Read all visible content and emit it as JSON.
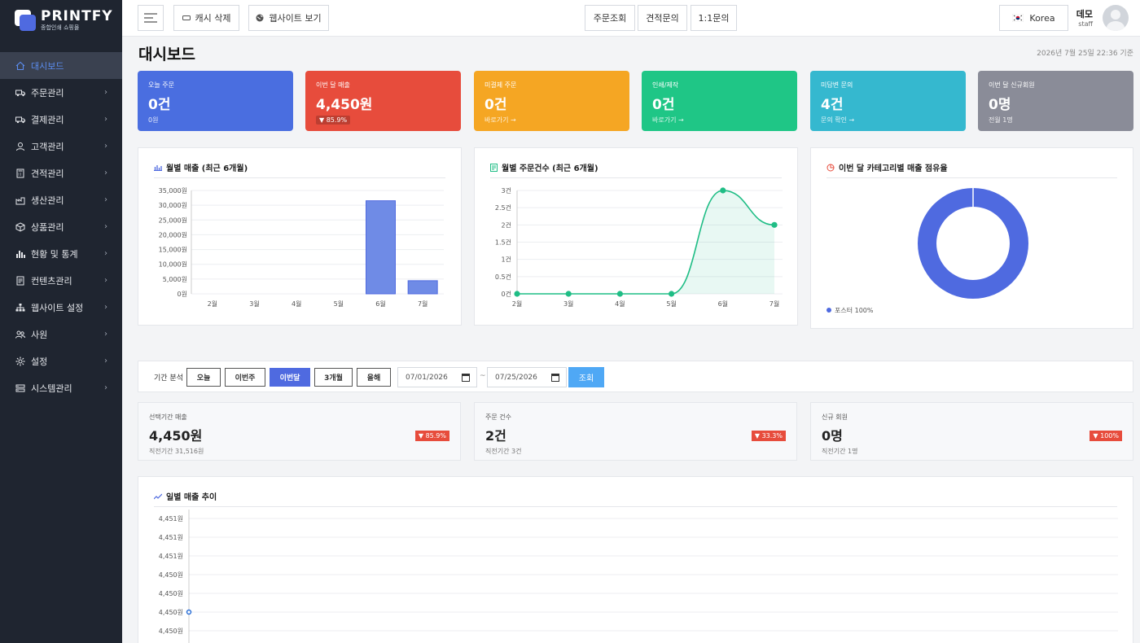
{
  "brand": {
    "title": "PRINTFY",
    "subtitle": "종합인쇄 쇼핑몰"
  },
  "sidebar": {
    "items": [
      {
        "label": "대시보드",
        "icon": "home-icon",
        "active": true
      },
      {
        "label": "주문관리",
        "icon": "truck-icon"
      },
      {
        "label": "결제관리",
        "icon": "truck-icon"
      },
      {
        "label": "고객관리",
        "icon": "user-icon"
      },
      {
        "label": "견적관리",
        "icon": "calculator-icon"
      },
      {
        "label": "생산관리",
        "icon": "factory-icon"
      },
      {
        "label": "상품관리",
        "icon": "box-icon"
      },
      {
        "label": "현황 및 통계",
        "icon": "bar-chart-icon"
      },
      {
        "label": "컨텐츠관리",
        "icon": "document-icon"
      },
      {
        "label": "웹사이트 설정",
        "icon": "sitemap-icon"
      },
      {
        "label": "사원",
        "icon": "users-icon"
      },
      {
        "label": "설정",
        "icon": "gear-icon"
      },
      {
        "label": "시스템관리",
        "icon": "server-icon"
      }
    ]
  },
  "topbar": {
    "cache_label": "캐시 삭제",
    "website_label": "웹사이트 보기",
    "nav": [
      "주문조회",
      "견적문의",
      "1:1문의"
    ],
    "language": "Korea",
    "user_name": "데모",
    "user_role": "staff"
  },
  "page": {
    "title": "대시보드",
    "date": "2026년 7월 25일 22:36 기준"
  },
  "cards": [
    {
      "title": "오늘 주문",
      "value": "0건",
      "sub": "0원",
      "color": "#4a6ee0"
    },
    {
      "title": "이번 달 매출",
      "value": "4,450원",
      "badge": "▼ 85.9%",
      "color": "#e74c3c"
    },
    {
      "title": "미결제 주문",
      "value": "0건",
      "sub": "바로가기 →",
      "color": "#f5a623"
    },
    {
      "title": "인쇄/제작",
      "value": "0건",
      "sub": "바로가기 →",
      "color": "#1fc686"
    },
    {
      "title": "미답변 문의",
      "value": "4건",
      "sub": "문의 확인 →",
      "color": "#35b8cf"
    },
    {
      "title": "이번 달 신규회원",
      "value": "0명",
      "sub": "전월 1명",
      "color": "#8a8c98"
    }
  ],
  "panels": {
    "monthly_sales": "월별 매출 (최근 6개월)",
    "monthly_orders": "월별 주문건수 (최근 6개월)",
    "category_share": "이번 달 카테고리별 매출 점유율",
    "daily_trend": "일별 매출 추이"
  },
  "filter": {
    "label": "기간 분석",
    "buttons": [
      "오늘",
      "이번주",
      "이번달",
      "3개월",
      "올해"
    ],
    "active": "이번달",
    "date_from": "07/01/2026",
    "tilde": "~",
    "date_to": "07/25/2026",
    "search_label": "조회"
  },
  "stats": [
    {
      "title": "선택기간 매출",
      "value": "4,450원",
      "sub": "직전기간 31,516원",
      "change": "▼ 85.9%"
    },
    {
      "title": "주문 건수",
      "value": "2건",
      "sub": "직전기간 3건",
      "change": "▼ 33.3%"
    },
    {
      "title": "신규 회원",
      "value": "0명",
      "sub": "직전기간 1명",
      "change": "▼ 100%"
    }
  ],
  "chart_data": [
    {
      "type": "bar",
      "title": "월별 매출 (최근 6개월)",
      "categories": [
        "2월",
        "3월",
        "4월",
        "5월",
        "6월",
        "7월"
      ],
      "values": [
        0,
        0,
        0,
        0,
        31516,
        4450
      ],
      "ylim": [
        0,
        35000
      ],
      "yticks": [
        "0원",
        "5,000원",
        "10,000원",
        "15,000원",
        "20,000원",
        "25,000원",
        "30,000원",
        "35,000원"
      ],
      "color": "#6f8be6",
      "grid": true
    },
    {
      "type": "area",
      "title": "월별 주문건수 (최근 6개월)",
      "categories": [
        "2월",
        "3월",
        "4월",
        "5월",
        "6월",
        "7월"
      ],
      "values": [
        0,
        0,
        0,
        0,
        3,
        2
      ],
      "ylim": [
        0,
        3
      ],
      "yticks": [
        "0건",
        "0.5건",
        "1건",
        "1.5건",
        "2건",
        "2.5건",
        "3건"
      ],
      "color": "#1fbd85",
      "grid": true
    },
    {
      "type": "pie",
      "title": "이번 달 카테고리별 매출 점유율",
      "series": [
        {
          "name": "포스터 100%",
          "value": 100
        }
      ],
      "color": "#4f6ae0",
      "legend": "bottom-left"
    },
    {
      "type": "line",
      "title": "일별 매출 추이",
      "yticks": [
        "4,451원",
        "4,451원",
        "4,451원",
        "4,450원",
        "4,450원",
        "4,450원",
        "4,450원"
      ],
      "values": [
        4450
      ],
      "color": "#2b6fd6",
      "grid": true
    }
  ]
}
